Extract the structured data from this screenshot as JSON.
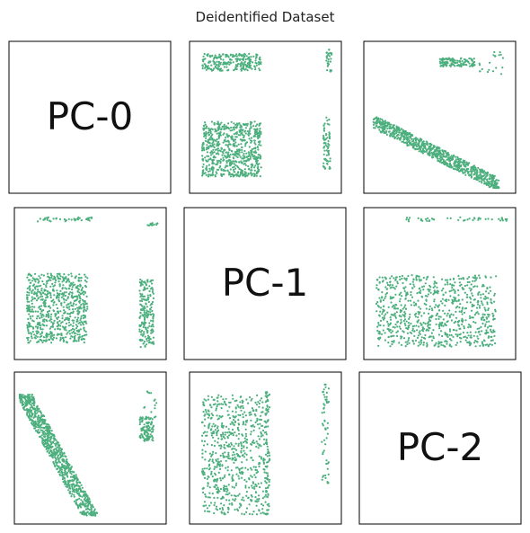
{
  "chart_data": {
    "type": "scatter",
    "title": "Deidentified Dataset",
    "point_color": "#4caf7d",
    "axes_visible": false,
    "grid": false,
    "variables": [
      "PC-0",
      "PC-1",
      "PC-2"
    ],
    "diagonal_labels": [
      "PC-0",
      "PC-1",
      "PC-2"
    ],
    "panels": [
      {
        "row": 0,
        "col": 1,
        "x": "PC-1",
        "y": "PC-0",
        "xlim": [
          0,
          1
        ],
        "ylim": [
          0,
          1
        ],
        "regions": [
          {
            "x": [
              0.05,
              0.47
            ],
            "y": [
              0.83,
              0.95
            ],
            "n": 240,
            "shape": "band"
          },
          {
            "x": [
              0.05,
              0.47
            ],
            "y": [
              0.08,
              0.47
            ],
            "n": 700,
            "shape": "block"
          },
          {
            "x": [
              0.91,
              0.96
            ],
            "y": [
              0.1,
              0.5
            ],
            "n": 70,
            "shape": "line"
          },
          {
            "x": [
              0.93,
              0.97
            ],
            "y": [
              0.82,
              0.98
            ],
            "n": 30,
            "shape": "line"
          }
        ]
      },
      {
        "row": 0,
        "col": 2,
        "x": "PC-2",
        "y": "PC-0",
        "xlim": [
          0,
          1
        ],
        "ylim": [
          0,
          1
        ],
        "regions": [
          {
            "x": [
              0.03,
              0.92
            ],
            "y": [
              0.02,
              0.47
            ],
            "n": 800,
            "shape": "diag-down"
          },
          {
            "x": [
              0.5,
              0.75
            ],
            "y": [
              0.86,
              0.92
            ],
            "n": 120,
            "shape": "band"
          },
          {
            "x": [
              0.78,
              0.95
            ],
            "y": [
              0.8,
              0.97
            ],
            "n": 20,
            "shape": "line"
          }
        ]
      },
      {
        "row": 1,
        "col": 0,
        "x": "PC-0",
        "y": "PC-1",
        "xlim": [
          0,
          1
        ],
        "ylim": [
          0,
          1
        ],
        "regions": [
          {
            "x": [
              0.05,
              0.48
            ],
            "y": [
              0.08,
              0.57
            ],
            "n": 700,
            "shape": "block"
          },
          {
            "x": [
              0.85,
              0.95
            ],
            "y": [
              0.05,
              0.53
            ],
            "n": 200,
            "shape": "block"
          },
          {
            "x": [
              0.08,
              0.52
            ],
            "y": [
              0.94,
              0.97
            ],
            "n": 40,
            "shape": "band"
          },
          {
            "x": [
              0.9,
              0.98
            ],
            "y": [
              0.91,
              0.93
            ],
            "n": 12,
            "shape": "band"
          }
        ]
      },
      {
        "row": 1,
        "col": 2,
        "x": "PC-2",
        "y": "PC-1",
        "xlim": [
          0,
          1
        ],
        "ylim": [
          0,
          1
        ],
        "regions": [
          {
            "x": [
              0.05,
              0.9
            ],
            "y": [
              0.05,
              0.56
            ],
            "n": 800,
            "shape": "block"
          },
          {
            "x": [
              0.25,
              0.98
            ],
            "y": [
              0.94,
              0.97
            ],
            "n": 45,
            "shape": "band"
          }
        ]
      },
      {
        "row": 2,
        "col": 0,
        "x": "PC-0",
        "y": "PC-2",
        "xlim": [
          0,
          1
        ],
        "ylim": [
          0,
          1
        ],
        "regions": [
          {
            "x": [
              0.03,
              0.5
            ],
            "y": [
              0.02,
              0.88
            ],
            "n": 800,
            "shape": "diag-up"
          },
          {
            "x": [
              0.85,
              0.95
            ],
            "y": [
              0.55,
              0.72
            ],
            "n": 110,
            "shape": "block"
          },
          {
            "x": [
              0.88,
              0.97
            ],
            "y": [
              0.7,
              0.92
            ],
            "n": 15,
            "shape": "line"
          }
        ]
      },
      {
        "row": 2,
        "col": 1,
        "x": "PC-1",
        "y": "PC-2",
        "xlim": [
          0,
          1
        ],
        "ylim": [
          0,
          1
        ],
        "regions": [
          {
            "x": [
              0.05,
              0.52
            ],
            "y": [
              0.03,
              0.88
            ],
            "n": 700,
            "shape": "block"
          },
          {
            "x": [
              0.5,
              0.53
            ],
            "y": [
              0.02,
              0.92
            ],
            "n": 60,
            "shape": "line"
          },
          {
            "x": [
              0.9,
              0.95
            ],
            "y": [
              0.25,
              0.97
            ],
            "n": 55,
            "shape": "line"
          }
        ]
      }
    ]
  }
}
